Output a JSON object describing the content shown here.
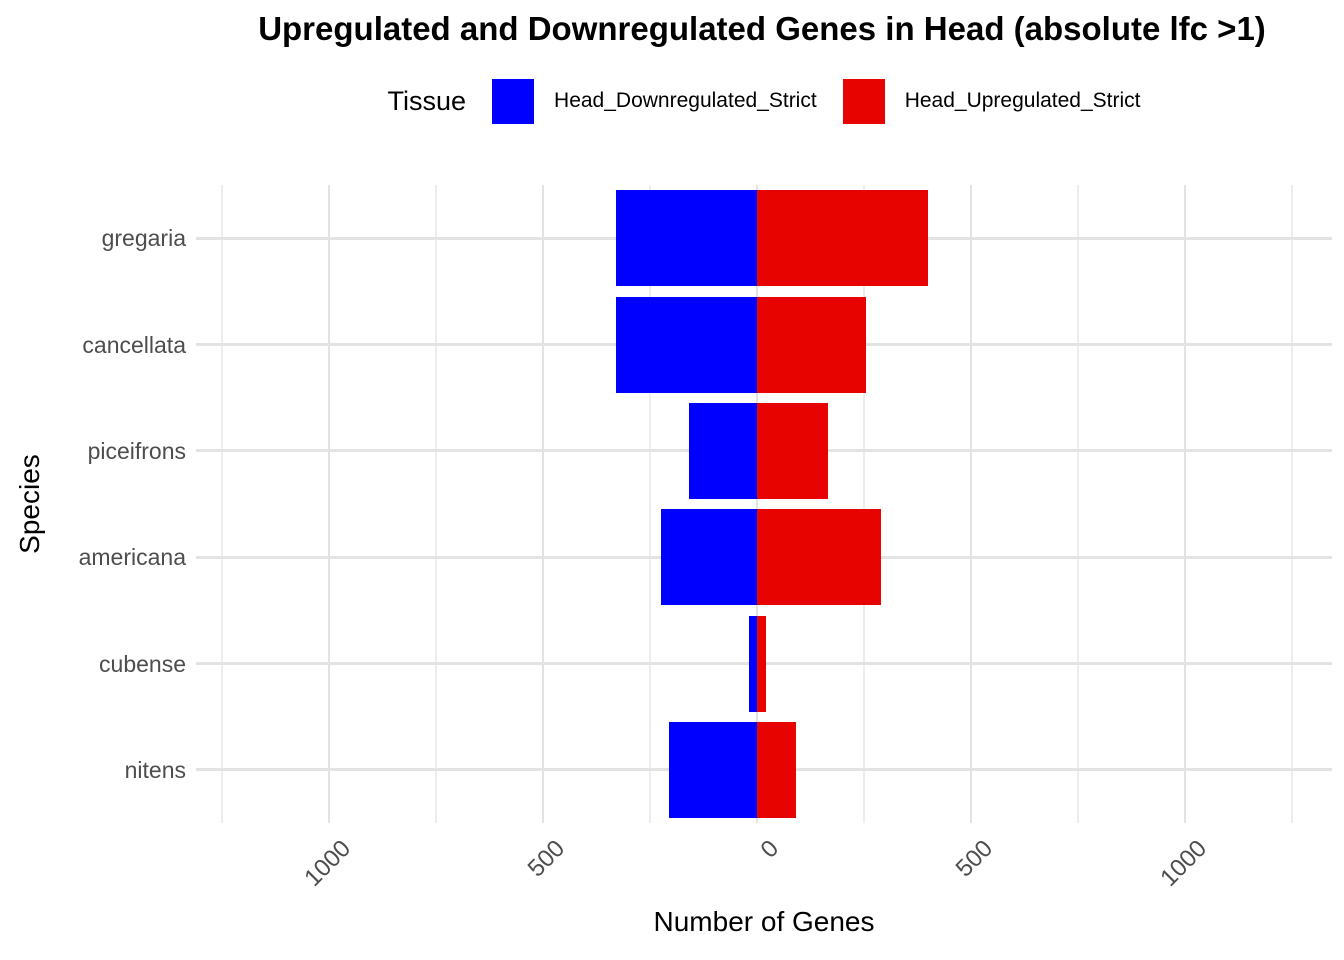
{
  "legend": {
    "title": "Tissue",
    "items": [
      {
        "label": "Head_Downregulated_Strict",
        "color": "#0000ff"
      },
      {
        "label": "Head_Upregulated_Strict",
        "color": "#e60300"
      }
    ]
  },
  "chart_data": {
    "type": "bar",
    "orientation": "horizontal-diverging",
    "title": "Upregulated and Downregulated Genes in Head (absolute lfc >1)",
    "xlabel": "Number of Genes",
    "ylabel": "Species",
    "categories": [
      "gregaria",
      "cancellata",
      "piceifrons",
      "americana",
      "cubense",
      "nitens"
    ],
    "series": [
      {
        "name": "Head_Downregulated_Strict",
        "color": "#0000ff",
        "direction": "negative",
        "values": [
          330,
          330,
          160,
          225,
          20,
          205
        ]
      },
      {
        "name": "Head_Upregulated_Strict",
        "color": "#e60300",
        "direction": "positive",
        "values": [
          400,
          255,
          165,
          290,
          20,
          90
        ]
      }
    ],
    "xlim": [
      -1311,
      1343
    ],
    "x_major_ticks": [
      -1000,
      -500,
      0,
      500,
      1000
    ],
    "x_tick_labels": [
      "1000",
      "500",
      "0",
      "500",
      "1000"
    ],
    "x_minor_ticks": [
      -1250,
      -750,
      -250,
      250,
      750,
      1250
    ],
    "grid": true,
    "legend_position": "top",
    "bar_width_fraction": 0.9
  }
}
